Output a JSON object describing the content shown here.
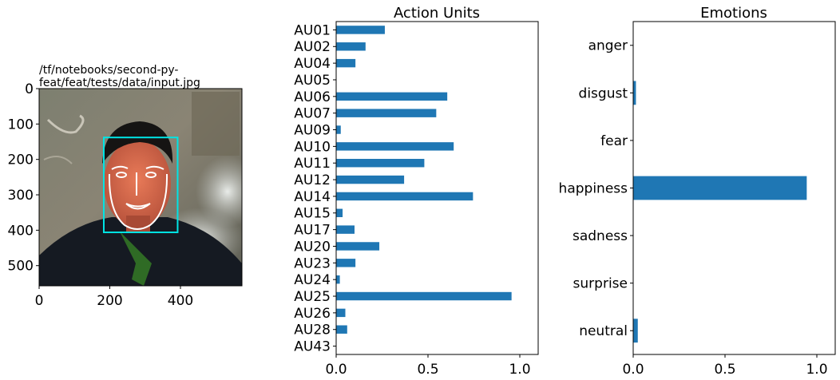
{
  "image_panel": {
    "title_line1": "/tf/notebooks/second-py-",
    "title_line2": "feat/feat/tests/data/input.jpg",
    "xticks": [
      "0",
      "200",
      "400"
    ],
    "yticks": [
      "0",
      "100",
      "200",
      "300",
      "400",
      "500"
    ],
    "image_extent": {
      "x": [
        0,
        574
      ],
      "y": [
        0,
        557
      ]
    },
    "face_box": {
      "x0": 183,
      "y0": 138,
      "x1": 392,
      "y1": 406
    },
    "colors": {
      "box": "#00e5e5",
      "landmarks": "#ffffff"
    }
  },
  "chart_data": [
    {
      "type": "bar",
      "orientation": "horizontal",
      "title": "Action Units",
      "categories": [
        "AU01",
        "AU02",
        "AU04",
        "AU05",
        "AU06",
        "AU07",
        "AU09",
        "AU10",
        "AU11",
        "AU12",
        "AU14",
        "AU15",
        "AU17",
        "AU20",
        "AU23",
        "AU24",
        "AU25",
        "AU26",
        "AU28",
        "AU43"
      ],
      "values": [
        0.265,
        0.16,
        0.105,
        0.0,
        0.605,
        0.545,
        0.025,
        0.64,
        0.48,
        0.37,
        0.745,
        0.035,
        0.1,
        0.235,
        0.105,
        0.02,
        0.955,
        0.05,
        0.06,
        0.0
      ],
      "xlim": [
        0,
        1.1
      ],
      "xticks": [
        "0.0",
        "0.5",
        "1.0"
      ],
      "color": "#1f77b4"
    },
    {
      "type": "bar",
      "orientation": "horizontal",
      "title": "Emotions",
      "categories": [
        "anger",
        "disgust",
        "fear",
        "happiness",
        "sadness",
        "surprise",
        "neutral"
      ],
      "values": [
        0.0,
        0.015,
        0.0,
        0.945,
        0.0,
        0.0,
        0.025
      ],
      "xlim": [
        0,
        1.1
      ],
      "xticks": [
        "0.0",
        "0.5",
        "1.0"
      ],
      "color": "#1f77b4"
    }
  ]
}
